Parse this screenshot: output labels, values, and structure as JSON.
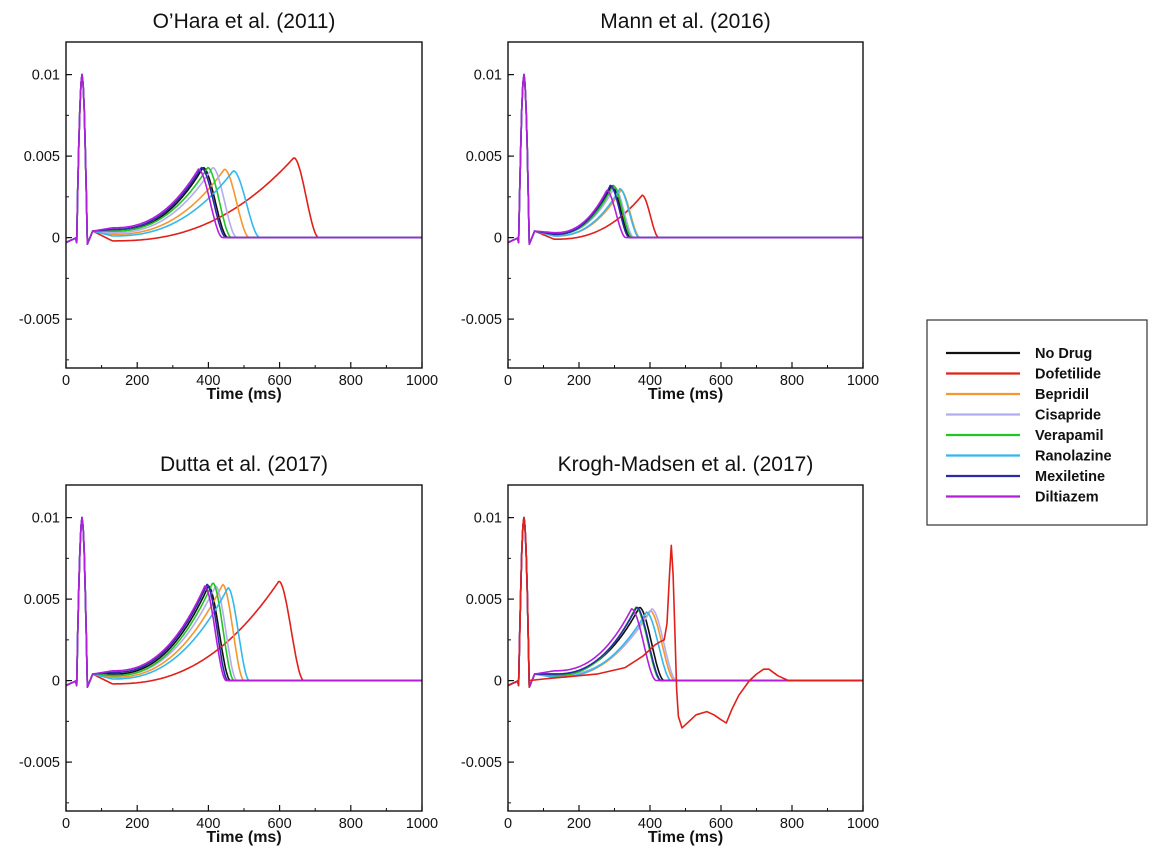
{
  "colors": {
    "No Drug": "#111111",
    "Dofetilide": "#e0201b",
    "Bepridil": "#f5962e",
    "Cisapride": "#b0aef0",
    "Verapamil": "#22c522",
    "Ranolazine": "#33b8ee",
    "Mexiletine": "#2a2aa8",
    "Diltiazem": "#b21fdc"
  },
  "legend": {
    "placement": "right-middle",
    "entries": [
      "No Drug",
      "Dofetilide",
      "Bepridil",
      "Cisapride",
      "Verapamil",
      "Ranolazine",
      "Mexiletine",
      "Diltiazem"
    ]
  },
  "chart_data": [
    {
      "type": "line",
      "title": "O’Hara et al. (2011)",
      "xlabel": "Time (ms)",
      "ylabel": "",
      "xlim": [
        0,
        1000
      ],
      "ylim": [
        -0.008,
        0.012
      ],
      "xticks": [
        "0",
        "200",
        "400",
        "600",
        "800",
        "1000"
      ],
      "yticks": [
        "-0.005",
        "0",
        "0.005",
        "0.01"
      ],
      "grid": false,
      "series": [
        {
          "name": "No Drug",
          "early": 0.0004,
          "peak_t": 385,
          "peak_v": 0.0043,
          "end_t": 455,
          "dip": 0
        },
        {
          "name": "Dofetilide",
          "early": -0.0002,
          "peak_t": 640,
          "peak_v": 0.0049,
          "end_t": 710,
          "dip": 0
        },
        {
          "name": "Bepridil",
          "early": 0.0002,
          "peak_t": 445,
          "peak_v": 0.0042,
          "end_t": 515,
          "dip": 0
        },
        {
          "name": "Cisapride",
          "early": 0.0003,
          "peak_t": 412,
          "peak_v": 0.0043,
          "end_t": 480,
          "dip": 0
        },
        {
          "name": "Verapamil",
          "early": 0.0004,
          "peak_t": 398,
          "peak_v": 0.0043,
          "end_t": 465,
          "dip": 0
        },
        {
          "name": "Ranolazine",
          "early": 0.0001,
          "peak_t": 470,
          "peak_v": 0.0041,
          "end_t": 545,
          "dip": 0
        },
        {
          "name": "Mexiletine",
          "early": 0.0005,
          "peak_t": 380,
          "peak_v": 0.0043,
          "end_t": 450,
          "dip": 0
        },
        {
          "name": "Diltiazem",
          "early": 0.0006,
          "peak_t": 372,
          "peak_v": 0.0042,
          "end_t": 440,
          "dip": 0
        }
      ]
    },
    {
      "type": "line",
      "title": "Mann et al. (2016)",
      "xlabel": "Time (ms)",
      "ylabel": "",
      "xlim": [
        0,
        1000
      ],
      "ylim": [
        -0.008,
        0.012
      ],
      "xticks": [
        "0",
        "200",
        "400",
        "600",
        "800",
        "1000"
      ],
      "yticks": [
        "-0.005",
        "0",
        "0.005",
        "0.01"
      ],
      "grid": false,
      "series": [
        {
          "name": "No Drug",
          "early": 0.0002,
          "peak_t": 292,
          "peak_v": 0.0032,
          "end_t": 345,
          "dip": 0
        },
        {
          "name": "Dofetilide",
          "early": -0.0001,
          "peak_t": 378,
          "peak_v": 0.0026,
          "end_t": 425,
          "dip": 0
        },
        {
          "name": "Bepridil",
          "early": 0.0001,
          "peak_t": 318,
          "peak_v": 0.0029,
          "end_t": 372,
          "dip": 0
        },
        {
          "name": "Cisapride",
          "early": 0.0002,
          "peak_t": 300,
          "peak_v": 0.0031,
          "end_t": 355,
          "dip": 0
        },
        {
          "name": "Verapamil",
          "early": 0.0002,
          "peak_t": 296,
          "peak_v": 0.0032,
          "end_t": 350,
          "dip": 0
        },
        {
          "name": "Ranolazine",
          "early": 0.0001,
          "peak_t": 315,
          "peak_v": 0.003,
          "end_t": 370,
          "dip": 0
        },
        {
          "name": "Mexiletine",
          "early": 0.0002,
          "peak_t": 288,
          "peak_v": 0.0032,
          "end_t": 342,
          "dip": 0
        },
        {
          "name": "Diltiazem",
          "early": 0.0003,
          "peak_t": 278,
          "peak_v": 0.0029,
          "end_t": 332,
          "dip": 0
        }
      ]
    },
    {
      "type": "line",
      "title": "Dutta et al. (2017)",
      "xlabel": "Time (ms)",
      "ylabel": "",
      "xlim": [
        0,
        1000
      ],
      "ylim": [
        -0.008,
        0.012
      ],
      "xticks": [
        "0",
        "200",
        "400",
        "600",
        "800",
        "1000"
      ],
      "yticks": [
        "-0.005",
        "0",
        "0.005",
        "0.01"
      ],
      "grid": false,
      "series": [
        {
          "name": "No Drug",
          "early": 0.0004,
          "peak_t": 400,
          "peak_v": 0.0058,
          "end_t": 462,
          "dip": 0
        },
        {
          "name": "Dofetilide",
          "early": -0.0002,
          "peak_t": 598,
          "peak_v": 0.0061,
          "end_t": 668,
          "dip": 0
        },
        {
          "name": "Bepridil",
          "early": 0.0002,
          "peak_t": 440,
          "peak_v": 0.0059,
          "end_t": 500,
          "dip": 0
        },
        {
          "name": "Cisapride",
          "early": 0.0003,
          "peak_t": 420,
          "peak_v": 0.0058,
          "end_t": 480,
          "dip": 0
        },
        {
          "name": "Verapamil",
          "early": 0.0003,
          "peak_t": 412,
          "peak_v": 0.006,
          "end_t": 472,
          "dip": 0
        },
        {
          "name": "Ranolazine",
          "early": 0.0001,
          "peak_t": 455,
          "peak_v": 0.0057,
          "end_t": 515,
          "dip": 0
        },
        {
          "name": "Mexiletine",
          "early": 0.0005,
          "peak_t": 396,
          "peak_v": 0.0059,
          "end_t": 455,
          "dip": 0
        },
        {
          "name": "Diltiazem",
          "early": 0.0006,
          "peak_t": 390,
          "peak_v": 0.0058,
          "end_t": 450,
          "dip": 0
        }
      ]
    },
    {
      "type": "line",
      "title": "Krogh-Madsen et al. (2017)",
      "xlabel": "Time (ms)",
      "ylabel": "",
      "xlim": [
        0,
        1000
      ],
      "ylim": [
        -0.008,
        0.012
      ],
      "xticks": [
        "0",
        "200",
        "400",
        "600",
        "800",
        "1000"
      ],
      "yticks": [
        "-0.005",
        "0",
        "0.005",
        "0.01"
      ],
      "grid": false,
      "series": [
        {
          "name": "No Drug",
          "early": 0.0004,
          "peak_t": 370,
          "peak_v": 0.0045,
          "end_t": 440,
          "dip": 0
        },
        {
          "name": "Bepridil",
          "early": 0.0002,
          "peak_t": 400,
          "peak_v": 0.0043,
          "end_t": 470,
          "dip": 0
        },
        {
          "name": "Cisapride",
          "early": 0.0003,
          "peak_t": 405,
          "peak_v": 0.0044,
          "end_t": 475,
          "dip": 0
        },
        {
          "name": "Verapamil",
          "early": 0.0003,
          "peak_t": 360,
          "peak_v": 0.0045,
          "end_t": 430,
          "dip": 0
        },
        {
          "name": "Ranolazine",
          "early": 0.0002,
          "peak_t": 390,
          "peak_v": 0.0042,
          "end_t": 460,
          "dip": 0
        },
        {
          "name": "Mexiletine",
          "early": 0.0004,
          "peak_t": 362,
          "peak_v": 0.0045,
          "end_t": 432,
          "dip": 0
        },
        {
          "name": "Diltiazem",
          "early": 0.0006,
          "peak_t": 348,
          "peak_v": 0.0044,
          "end_t": 418,
          "dip": 0
        },
        {
          "name": "Dofetilide",
          "points": [
            [
              60,
              0
            ],
            [
              100,
              0.0001
            ],
            [
              150,
              0.0002
            ],
            [
              250,
              0.0004
            ],
            [
              330,
              0.0008
            ],
            [
              380,
              0.0015
            ],
            [
              415,
              0.0022
            ],
            [
              430,
              0.0024
            ],
            [
              440,
              0.0025
            ],
            [
              448,
              0.0035
            ],
            [
              455,
              0.0065
            ],
            [
              460,
              0.0083
            ],
            [
              465,
              0.0065
            ],
            [
              470,
              0.003
            ],
            [
              475,
              -0.0005
            ],
            [
              480,
              -0.0022
            ],
            [
              490,
              -0.0029
            ],
            [
              510,
              -0.0025
            ],
            [
              530,
              -0.0021
            ],
            [
              560,
              -0.0019
            ],
            [
              580,
              -0.0021
            ],
            [
              600,
              -0.0024
            ],
            [
              615,
              -0.0026
            ],
            [
              630,
              -0.0018
            ],
            [
              650,
              -0.0009
            ],
            [
              680,
              0
            ],
            [
              700,
              0.0004
            ],
            [
              720,
              0.0007
            ],
            [
              735,
              0.0007
            ],
            [
              760,
              0.0003
            ],
            [
              790,
              0
            ],
            [
              1000,
              0
            ]
          ]
        }
      ]
    }
  ]
}
